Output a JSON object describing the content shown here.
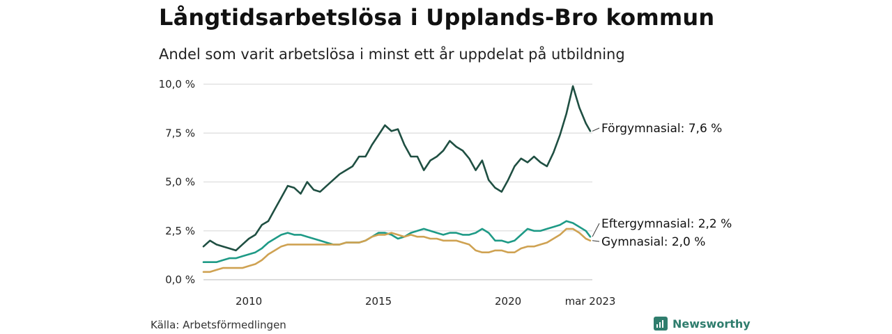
{
  "title": "Långtidsarbetslösa i Upplands-Bro kommun",
  "subtitle": "Andel som varit arbetslösa i minst ett år uppdelat på utbildning",
  "source": "Källa: Arbetsförmedlingen",
  "brand": "Newsworthy",
  "colors": {
    "forgymnasial": "#1f4f42",
    "eftergymnasial": "#1e9a86",
    "gymnasial": "#cfa252",
    "grid": "#dddddd",
    "brand": "#2f7d6d"
  },
  "chart_data": {
    "type": "line",
    "title": "Långtidsarbetslösa i Upplands-Bro kommun",
    "subtitle": "Andel som varit arbetslösa i minst ett år uppdelat på utbildning",
    "ylim": [
      0,
      10
    ],
    "y_ticks": [
      0,
      2.5,
      5,
      7.5,
      10
    ],
    "y_tick_labels": [
      "0,0 %",
      "2,5 %",
      "5,0 %",
      "7,5 %",
      "10,0 %"
    ],
    "xlim": [
      2008.25,
      2023.25
    ],
    "x_ticks": [
      2010,
      2015,
      2020,
      2023.17
    ],
    "x_tick_labels": [
      "2010",
      "2015",
      "2020",
      "mar 2023"
    ],
    "grid": true,
    "series": [
      {
        "name": "Förgymnasial",
        "end_label": "Förgymnasial: 7,6 %",
        "color_key": "forgymnasial",
        "points": [
          [
            2008.25,
            1.7
          ],
          [
            2008.5,
            2.0
          ],
          [
            2008.75,
            1.8
          ],
          [
            2009.0,
            1.7
          ],
          [
            2009.25,
            1.6
          ],
          [
            2009.5,
            1.5
          ],
          [
            2009.75,
            1.8
          ],
          [
            2010.0,
            2.1
          ],
          [
            2010.25,
            2.3
          ],
          [
            2010.5,
            2.8
          ],
          [
            2010.75,
            3.0
          ],
          [
            2011.0,
            3.6
          ],
          [
            2011.25,
            4.2
          ],
          [
            2011.5,
            4.8
          ],
          [
            2011.75,
            4.7
          ],
          [
            2012.0,
            4.4
          ],
          [
            2012.25,
            5.0
          ],
          [
            2012.5,
            4.6
          ],
          [
            2012.75,
            4.5
          ],
          [
            2013.0,
            4.8
          ],
          [
            2013.25,
            5.1
          ],
          [
            2013.5,
            5.4
          ],
          [
            2013.75,
            5.6
          ],
          [
            2014.0,
            5.8
          ],
          [
            2014.25,
            6.3
          ],
          [
            2014.5,
            6.3
          ],
          [
            2014.75,
            6.9
          ],
          [
            2015.0,
            7.4
          ],
          [
            2015.25,
            7.9
          ],
          [
            2015.5,
            7.6
          ],
          [
            2015.75,
            7.7
          ],
          [
            2016.0,
            6.9
          ],
          [
            2016.25,
            6.3
          ],
          [
            2016.5,
            6.3
          ],
          [
            2016.75,
            5.6
          ],
          [
            2017.0,
            6.1
          ],
          [
            2017.25,
            6.3
          ],
          [
            2017.5,
            6.6
          ],
          [
            2017.75,
            7.1
          ],
          [
            2018.0,
            6.8
          ],
          [
            2018.25,
            6.6
          ],
          [
            2018.5,
            6.2
          ],
          [
            2018.75,
            5.6
          ],
          [
            2019.0,
            6.1
          ],
          [
            2019.25,
            5.1
          ],
          [
            2019.5,
            4.7
          ],
          [
            2019.75,
            4.5
          ],
          [
            2020.0,
            5.1
          ],
          [
            2020.25,
            5.8
          ],
          [
            2020.5,
            6.2
          ],
          [
            2020.75,
            6.0
          ],
          [
            2021.0,
            6.3
          ],
          [
            2021.25,
            6.0
          ],
          [
            2021.5,
            5.8
          ],
          [
            2021.75,
            6.5
          ],
          [
            2022.0,
            7.4
          ],
          [
            2022.25,
            8.5
          ],
          [
            2022.5,
            9.9
          ],
          [
            2022.75,
            8.8
          ],
          [
            2023.0,
            8.0
          ],
          [
            2023.17,
            7.6
          ]
        ]
      },
      {
        "name": "Eftergymnasial",
        "end_label": "Eftergymnasial: 2,2 %",
        "color_key": "eftergymnasial",
        "points": [
          [
            2008.25,
            0.9
          ],
          [
            2008.5,
            0.9
          ],
          [
            2008.75,
            0.9
          ],
          [
            2009.0,
            1.0
          ],
          [
            2009.25,
            1.1
          ],
          [
            2009.5,
            1.1
          ],
          [
            2009.75,
            1.2
          ],
          [
            2010.0,
            1.3
          ],
          [
            2010.25,
            1.4
          ],
          [
            2010.5,
            1.6
          ],
          [
            2010.75,
            1.9
          ],
          [
            2011.0,
            2.1
          ],
          [
            2011.25,
            2.3
          ],
          [
            2011.5,
            2.4
          ],
          [
            2011.75,
            2.3
          ],
          [
            2012.0,
            2.3
          ],
          [
            2012.25,
            2.2
          ],
          [
            2012.5,
            2.1
          ],
          [
            2012.75,
            2.0
          ],
          [
            2013.0,
            1.9
          ],
          [
            2013.25,
            1.8
          ],
          [
            2013.5,
            1.8
          ],
          [
            2013.75,
            1.9
          ],
          [
            2014.0,
            1.9
          ],
          [
            2014.25,
            1.9
          ],
          [
            2014.5,
            2.0
          ],
          [
            2014.75,
            2.2
          ],
          [
            2015.0,
            2.4
          ],
          [
            2015.25,
            2.4
          ],
          [
            2015.5,
            2.3
          ],
          [
            2015.75,
            2.1
          ],
          [
            2016.0,
            2.2
          ],
          [
            2016.25,
            2.4
          ],
          [
            2016.5,
            2.5
          ],
          [
            2016.75,
            2.6
          ],
          [
            2017.0,
            2.5
          ],
          [
            2017.25,
            2.4
          ],
          [
            2017.5,
            2.3
          ],
          [
            2017.75,
            2.4
          ],
          [
            2018.0,
            2.4
          ],
          [
            2018.25,
            2.3
          ],
          [
            2018.5,
            2.3
          ],
          [
            2018.75,
            2.4
          ],
          [
            2019.0,
            2.6
          ],
          [
            2019.25,
            2.4
          ],
          [
            2019.5,
            2.0
          ],
          [
            2019.75,
            2.0
          ],
          [
            2020.0,
            1.9
          ],
          [
            2020.25,
            2.0
          ],
          [
            2020.5,
            2.3
          ],
          [
            2020.75,
            2.6
          ],
          [
            2021.0,
            2.5
          ],
          [
            2021.25,
            2.5
          ],
          [
            2021.5,
            2.6
          ],
          [
            2021.75,
            2.7
          ],
          [
            2022.0,
            2.8
          ],
          [
            2022.25,
            3.0
          ],
          [
            2022.5,
            2.9
          ],
          [
            2022.75,
            2.7
          ],
          [
            2023.0,
            2.5
          ],
          [
            2023.17,
            2.2
          ]
        ]
      },
      {
        "name": "Gymnasial",
        "end_label": "Gymnasial: 2,0 %",
        "color_key": "gymnasial",
        "points": [
          [
            2008.25,
            0.4
          ],
          [
            2008.5,
            0.4
          ],
          [
            2008.75,
            0.5
          ],
          [
            2009.0,
            0.6
          ],
          [
            2009.25,
            0.6
          ],
          [
            2009.5,
            0.6
          ],
          [
            2009.75,
            0.6
          ],
          [
            2010.0,
            0.7
          ],
          [
            2010.25,
            0.8
          ],
          [
            2010.5,
            1.0
          ],
          [
            2010.75,
            1.3
          ],
          [
            2011.0,
            1.5
          ],
          [
            2011.25,
            1.7
          ],
          [
            2011.5,
            1.8
          ],
          [
            2011.75,
            1.8
          ],
          [
            2012.0,
            1.8
          ],
          [
            2012.25,
            1.8
          ],
          [
            2012.5,
            1.8
          ],
          [
            2012.75,
            1.8
          ],
          [
            2013.0,
            1.8
          ],
          [
            2013.25,
            1.8
          ],
          [
            2013.5,
            1.8
          ],
          [
            2013.75,
            1.9
          ],
          [
            2014.0,
            1.9
          ],
          [
            2014.25,
            1.9
          ],
          [
            2014.5,
            2.0
          ],
          [
            2014.75,
            2.2
          ],
          [
            2015.0,
            2.3
          ],
          [
            2015.25,
            2.3
          ],
          [
            2015.5,
            2.4
          ],
          [
            2015.75,
            2.3
          ],
          [
            2016.0,
            2.2
          ],
          [
            2016.25,
            2.3
          ],
          [
            2016.5,
            2.2
          ],
          [
            2016.75,
            2.2
          ],
          [
            2017.0,
            2.1
          ],
          [
            2017.25,
            2.1
          ],
          [
            2017.5,
            2.0
          ],
          [
            2017.75,
            2.0
          ],
          [
            2018.0,
            2.0
          ],
          [
            2018.25,
            1.9
          ],
          [
            2018.5,
            1.8
          ],
          [
            2018.75,
            1.5
          ],
          [
            2019.0,
            1.4
          ],
          [
            2019.25,
            1.4
          ],
          [
            2019.5,
            1.5
          ],
          [
            2019.75,
            1.5
          ],
          [
            2020.0,
            1.4
          ],
          [
            2020.25,
            1.4
          ],
          [
            2020.5,
            1.6
          ],
          [
            2020.75,
            1.7
          ],
          [
            2021.0,
            1.7
          ],
          [
            2021.25,
            1.8
          ],
          [
            2021.5,
            1.9
          ],
          [
            2021.75,
            2.1
          ],
          [
            2022.0,
            2.3
          ],
          [
            2022.25,
            2.6
          ],
          [
            2022.5,
            2.6
          ],
          [
            2022.75,
            2.4
          ],
          [
            2023.0,
            2.1
          ],
          [
            2023.17,
            2.0
          ]
        ]
      }
    ]
  }
}
